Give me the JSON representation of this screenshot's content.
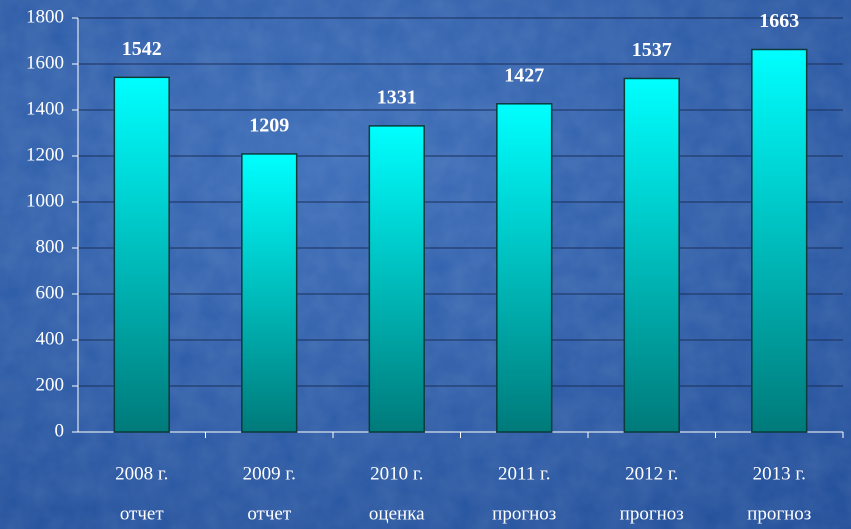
{
  "chart_data": {
    "type": "bar",
    "categories": [
      [
        "2008 г.",
        "отчет"
      ],
      [
        "2009 г.",
        "отчет"
      ],
      [
        "2010 г.",
        "оценка"
      ],
      [
        "2011 г.",
        "прогноз"
      ],
      [
        "2012 г.",
        "прогноз"
      ],
      [
        "2013 г.",
        "прогноз"
      ]
    ],
    "values": [
      1542,
      1209,
      1331,
      1427,
      1537,
      1663
    ],
    "color": "#00ffff",
    "ylim": [
      0,
      1800
    ],
    "yticks": [
      0,
      200,
      400,
      600,
      800,
      1000,
      1200,
      1400,
      1600,
      1800
    ],
    "grid": true
  }
}
